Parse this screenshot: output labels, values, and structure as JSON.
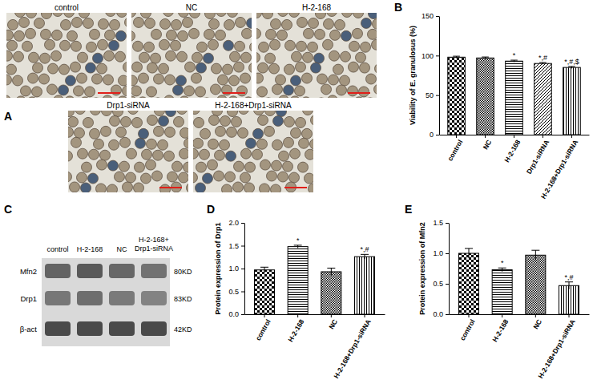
{
  "images": {
    "panel": "A",
    "labels": [
      "control",
      "NC",
      "H-2-168",
      "Drp1-siRNA",
      "H-2-168+Drp1-siRNA"
    ]
  },
  "blot": {
    "panel": "C",
    "lanes": [
      "control",
      "H-2-168",
      "NC",
      "H-2-168+ Drp1-siRNA"
    ],
    "rows": [
      "Mfn2",
      "Drp1",
      "β-act"
    ],
    "sizes": [
      "80KD",
      "83KD",
      "42KD"
    ]
  },
  "chart_data": [
    {
      "type": "bar",
      "panel": "B",
      "y_label": "Viability of E. granulosus (%)",
      "categories": [
        "control",
        "NC",
        "H-2-168",
        "Drp1-siRNA",
        "H-2-168+Drp1-siRNA"
      ],
      "values": [
        98,
        97,
        93,
        90,
        85
      ],
      "errors": [
        1.2,
        1.2,
        1.2,
        1.2,
        1.2
      ],
      "annotations": [
        null,
        null,
        "*",
        "*,#",
        "*,#,$"
      ],
      "color": "#000000",
      "ylim": [
        0,
        150
      ],
      "yticks": [
        0,
        50,
        100,
        150
      ]
    },
    {
      "type": "bar",
      "panel": "D",
      "y_label": "Protein expression of Drp1",
      "categories": [
        "control",
        "H-2-168",
        "NC",
        "H-2-168+Drp1-siRNA"
      ],
      "values": [
        0.97,
        1.48,
        0.93,
        1.26
      ],
      "errors": [
        0.06,
        0.03,
        0.08,
        0.05
      ],
      "annotations": [
        null,
        "*",
        null,
        "*,#"
      ],
      "color": "#000000",
      "ylim": [
        0,
        2
      ],
      "yticks": [
        {
          "value": 0,
          "label": "0.0"
        },
        {
          "value": 0.5,
          "label": "0.5"
        },
        {
          "value": 1,
          "label": "1.0"
        },
        {
          "value": 1.5,
          "label": "1.5"
        },
        {
          "value": 2,
          "label": "2.0"
        }
      ]
    },
    {
      "type": "bar",
      "panel": "E",
      "y_label": "Protein expression of Mfn2",
      "categories": [
        "control",
        "H-2-168",
        "NC",
        "H-2-168+Drp1-siRNA"
      ],
      "values": [
        1.0,
        0.73,
        0.97,
        0.47
      ],
      "errors": [
        0.08,
        0.03,
        0.08,
        0.06
      ],
      "annotations": [
        null,
        "*",
        null,
        "*,#"
      ],
      "color": "#000000",
      "ylim": [
        0,
        1.5
      ],
      "yticks": [
        {
          "value": 0,
          "label": "0.0"
        },
        {
          "value": 0.5,
          "label": "0.5"
        },
        {
          "value": 1,
          "label": "1.0"
        },
        {
          "value": 1.5,
          "label": "1.5"
        }
      ]
    }
  ]
}
